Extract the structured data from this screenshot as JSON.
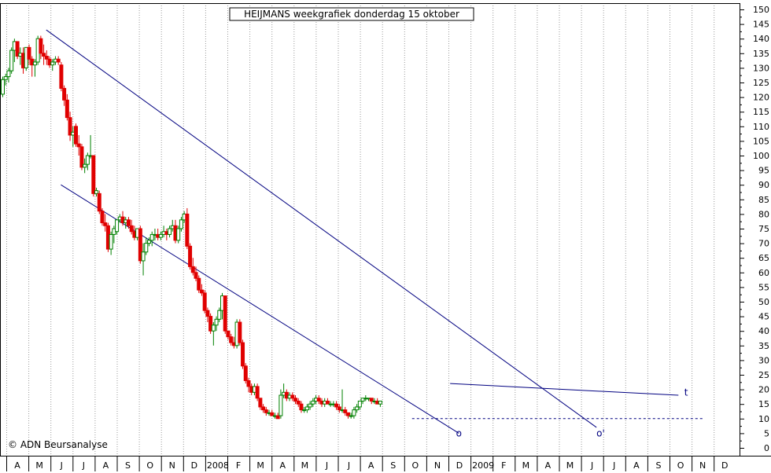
{
  "chart_data": {
    "type": "candlestick",
    "title": "HEIJMANS weekgrafiek donderdag 15 oktober",
    "copyright": "© ADN Beursanalyse",
    "y_axis": {
      "min": 0,
      "max": 150,
      "step": 5,
      "side": "right",
      "ticks": [
        "0",
        "5",
        "10",
        "15",
        "20",
        "25",
        "30",
        "35",
        "40",
        "45",
        "50",
        "55",
        "60",
        "65",
        "70",
        "75",
        "80",
        "85",
        "90",
        "95",
        "100",
        "105",
        "110",
        "115",
        "120",
        "125",
        "130",
        "135",
        "140",
        "145",
        "150"
      ]
    },
    "x_axis": {
      "labels": [
        "A",
        "M",
        "J",
        "J",
        "A",
        "S",
        "O",
        "N",
        "D",
        "2008",
        "F",
        "M",
        "A",
        "M",
        "J",
        "J",
        "A",
        "S",
        "O",
        "N",
        "D",
        "2009",
        "F",
        "M",
        "A",
        "M",
        "J",
        "J",
        "A",
        "S",
        "O",
        "N",
        "D"
      ],
      "major_labels": [
        "2008",
        "2009"
      ]
    },
    "grid": "vertical dotted",
    "colors": {
      "up": "#008000",
      "down": "#e00000",
      "trendline": "#000080",
      "support": "#000080"
    },
    "trendlines": [
      {
        "name": "upper channel",
        "from": {
          "week": 15,
          "value": 143
        },
        "to": {
          "week": 203,
          "value": 7
        }
      },
      {
        "name": "lower channel",
        "from": {
          "week": 20,
          "value": 90
        },
        "to": {
          "week": 156,
          "value": 5
        }
      },
      {
        "name": "resistance",
        "from": {
          "week": 153,
          "value": 22
        },
        "to": {
          "week": 231,
          "value": 18
        }
      },
      {
        "name": "support",
        "from": {
          "week": 140,
          "value": 10
        },
        "to": {
          "week": 240,
          "value": 10
        },
        "style": "dotted"
      }
    ],
    "annotations": [
      {
        "text": "o",
        "week": 155,
        "value": 5
      },
      {
        "text": "o'",
        "week": 203,
        "value": 5
      },
      {
        "text": "t",
        "week": 233,
        "value": 19
      }
    ],
    "candles": [
      {
        "o": 121,
        "h": 127,
        "l": 120,
        "c": 126
      },
      {
        "o": 126,
        "h": 128,
        "l": 124,
        "c": 127
      },
      {
        "o": 127,
        "h": 130,
        "l": 125,
        "c": 129
      },
      {
        "o": 129,
        "h": 137,
        "l": 128,
        "c": 136
      },
      {
        "o": 136,
        "h": 140,
        "l": 132,
        "c": 139
      },
      {
        "o": 139,
        "h": 139,
        "l": 133,
        "c": 134
      },
      {
        "o": 134,
        "h": 137,
        "l": 131,
        "c": 135
      },
      {
        "o": 135,
        "h": 137,
        "l": 128,
        "c": 130
      },
      {
        "o": 130,
        "h": 137,
        "l": 129,
        "c": 137
      },
      {
        "o": 137,
        "h": 138,
        "l": 131,
        "c": 133
      },
      {
        "o": 133,
        "h": 134,
        "l": 127,
        "c": 131
      },
      {
        "o": 131,
        "h": 133,
        "l": 127,
        "c": 132
      },
      {
        "o": 132,
        "h": 141,
        "l": 131,
        "c": 140
      },
      {
        "o": 140,
        "h": 141,
        "l": 133,
        "c": 135
      },
      {
        "o": 135,
        "h": 138,
        "l": 131,
        "c": 134
      },
      {
        "o": 134,
        "h": 136,
        "l": 131,
        "c": 133
      },
      {
        "o": 133,
        "h": 134,
        "l": 130,
        "c": 131
      },
      {
        "o": 131,
        "h": 133,
        "l": 129,
        "c": 132
      },
      {
        "o": 132,
        "h": 134,
        "l": 131,
        "c": 133
      },
      {
        "o": 133,
        "h": 134,
        "l": 131,
        "c": 132
      },
      {
        "o": 131,
        "h": 132,
        "l": 122,
        "c": 123
      },
      {
        "o": 123,
        "h": 124,
        "l": 117,
        "c": 119
      },
      {
        "o": 119,
        "h": 121,
        "l": 112,
        "c": 113
      },
      {
        "o": 113,
        "h": 115,
        "l": 105,
        "c": 107
      },
      {
        "o": 107,
        "h": 110,
        "l": 103,
        "c": 108
      },
      {
        "o": 110,
        "h": 111,
        "l": 103,
        "c": 104
      },
      {
        "o": 104,
        "h": 107,
        "l": 100,
        "c": 103
      },
      {
        "o": 103,
        "h": 104,
        "l": 95,
        "c": 96
      },
      {
        "o": 96,
        "h": 99,
        "l": 94,
        "c": 97
      },
      {
        "o": 97,
        "h": 101,
        "l": 95,
        "c": 100
      },
      {
        "o": 100,
        "h": 107,
        "l": 99,
        "c": 100
      },
      {
        "o": 100,
        "h": 100,
        "l": 86,
        "c": 87
      },
      {
        "o": 87,
        "h": 89,
        "l": 86,
        "c": 88
      },
      {
        "o": 87,
        "h": 88,
        "l": 80,
        "c": 81
      },
      {
        "o": 81,
        "h": 82,
        "l": 76,
        "c": 77
      },
      {
        "o": 77,
        "h": 80,
        "l": 74,
        "c": 76
      },
      {
        "o": 76,
        "h": 77,
        "l": 67,
        "c": 68
      },
      {
        "o": 68,
        "h": 74,
        "l": 66,
        "c": 73
      },
      {
        "o": 73,
        "h": 76,
        "l": 70,
        "c": 75
      },
      {
        "o": 74,
        "h": 78,
        "l": 73,
        "c": 78
      },
      {
        "o": 78,
        "h": 80,
        "l": 77,
        "c": 79
      },
      {
        "o": 79,
        "h": 81,
        "l": 76,
        "c": 77
      },
      {
        "o": 77,
        "h": 79,
        "l": 75,
        "c": 78
      },
      {
        "o": 78,
        "h": 79,
        "l": 75,
        "c": 76
      },
      {
        "o": 76,
        "h": 78,
        "l": 73,
        "c": 74
      },
      {
        "o": 74,
        "h": 76,
        "l": 71,
        "c": 72
      },
      {
        "o": 72,
        "h": 75,
        "l": 71,
        "c": 75
      },
      {
        "o": 75,
        "h": 76,
        "l": 63,
        "c": 64
      },
      {
        "o": 64,
        "h": 70,
        "l": 59,
        "c": 67
      },
      {
        "o": 67,
        "h": 72,
        "l": 66,
        "c": 70
      },
      {
        "o": 70,
        "h": 72,
        "l": 69,
        "c": 71
      },
      {
        "o": 71,
        "h": 74,
        "l": 69,
        "c": 73
      },
      {
        "o": 73,
        "h": 75,
        "l": 71,
        "c": 73
      },
      {
        "o": 73,
        "h": 75,
        "l": 71,
        "c": 72
      },
      {
        "o": 72,
        "h": 74,
        "l": 71,
        "c": 73
      },
      {
        "o": 73,
        "h": 76,
        "l": 72,
        "c": 74
      },
      {
        "o": 74,
        "h": 75,
        "l": 71,
        "c": 73
      },
      {
        "o": 73,
        "h": 76,
        "l": 72,
        "c": 75
      },
      {
        "o": 75,
        "h": 78,
        "l": 74,
        "c": 76
      },
      {
        "o": 76,
        "h": 78,
        "l": 70,
        "c": 71
      },
      {
        "o": 71,
        "h": 76,
        "l": 70,
        "c": 75
      },
      {
        "o": 75,
        "h": 79,
        "l": 74,
        "c": 78
      },
      {
        "o": 78,
        "h": 81,
        "l": 77,
        "c": 80
      },
      {
        "o": 80,
        "h": 82,
        "l": 68,
        "c": 69
      },
      {
        "o": 69,
        "h": 70,
        "l": 61,
        "c": 62
      },
      {
        "o": 62,
        "h": 65,
        "l": 59,
        "c": 60
      },
      {
        "o": 60,
        "h": 62,
        "l": 57,
        "c": 58
      },
      {
        "o": 58,
        "h": 59,
        "l": 53,
        "c": 54
      },
      {
        "o": 54,
        "h": 56,
        "l": 52,
        "c": 53
      },
      {
        "o": 53,
        "h": 54,
        "l": 46,
        "c": 47
      },
      {
        "o": 47,
        "h": 48,
        "l": 43,
        "c": 45
      },
      {
        "o": 45,
        "h": 46,
        "l": 39,
        "c": 40
      },
      {
        "o": 40,
        "h": 43,
        "l": 35,
        "c": 42
      },
      {
        "o": 42,
        "h": 45,
        "l": 40,
        "c": 44
      },
      {
        "o": 44,
        "h": 48,
        "l": 43,
        "c": 47
      },
      {
        "o": 47,
        "h": 53,
        "l": 44,
        "c": 52
      },
      {
        "o": 52,
        "h": 52,
        "l": 39,
        "c": 40
      },
      {
        "o": 40,
        "h": 40,
        "l": 37,
        "c": 38
      },
      {
        "o": 38,
        "h": 39,
        "l": 35,
        "c": 36
      },
      {
        "o": 36,
        "h": 38,
        "l": 34,
        "c": 35
      },
      {
        "o": 35,
        "h": 44,
        "l": 34,
        "c": 43
      },
      {
        "o": 43,
        "h": 44,
        "l": 35,
        "c": 36
      },
      {
        "o": 36,
        "h": 37,
        "l": 27,
        "c": 28
      },
      {
        "o": 28,
        "h": 29,
        "l": 22,
        "c": 23
      },
      {
        "o": 23,
        "h": 24,
        "l": 19,
        "c": 21
      },
      {
        "o": 21,
        "h": 22,
        "l": 18,
        "c": 19
      },
      {
        "o": 19,
        "h": 22,
        "l": 18,
        "c": 21
      },
      {
        "o": 21,
        "h": 22,
        "l": 16,
        "c": 17
      },
      {
        "o": 17,
        "h": 17,
        "l": 13,
        "c": 14
      },
      {
        "o": 14,
        "h": 15,
        "l": 12,
        "c": 13
      },
      {
        "o": 13,
        "h": 14,
        "l": 11,
        "c": 12
      },
      {
        "o": 12,
        "h": 13,
        "l": 11,
        "c": 12
      },
      {
        "o": 12,
        "h": 13,
        "l": 11,
        "c": 11
      },
      {
        "o": 11,
        "h": 12,
        "l": 10,
        "c": 11
      },
      {
        "o": 11,
        "h": 12,
        "l": 10,
        "c": 10
      },
      {
        "o": 11,
        "h": 20,
        "l": 10,
        "c": 18
      },
      {
        "o": 18,
        "h": 22,
        "l": 17,
        "c": 19
      },
      {
        "o": 19,
        "h": 20,
        "l": 16,
        "c": 17
      },
      {
        "o": 17,
        "h": 19,
        "l": 16,
        "c": 18
      },
      {
        "o": 18,
        "h": 19,
        "l": 16,
        "c": 17
      },
      {
        "o": 17,
        "h": 18,
        "l": 15,
        "c": 16
      },
      {
        "o": 16,
        "h": 17,
        "l": 14,
        "c": 15
      },
      {
        "o": 15,
        "h": 16,
        "l": 12,
        "c": 13
      },
      {
        "o": 13,
        "h": 14,
        "l": 12,
        "c": 13
      },
      {
        "o": 13,
        "h": 15,
        "l": 12,
        "c": 14
      },
      {
        "o": 14,
        "h": 16,
        "l": 13,
        "c": 15
      },
      {
        "o": 15,
        "h": 17,
        "l": 14,
        "c": 16
      },
      {
        "o": 16,
        "h": 18,
        "l": 15,
        "c": 17
      },
      {
        "o": 17,
        "h": 18,
        "l": 15,
        "c": 16
      },
      {
        "o": 16,
        "h": 17,
        "l": 14,
        "c": 15
      },
      {
        "o": 15,
        "h": 17,
        "l": 14,
        "c": 16
      },
      {
        "o": 16,
        "h": 17,
        "l": 15,
        "c": 15
      },
      {
        "o": 15,
        "h": 16,
        "l": 14,
        "c": 15
      },
      {
        "o": 15,
        "h": 16,
        "l": 14,
        "c": 15
      },
      {
        "o": 15,
        "h": 16,
        "l": 13,
        "c": 14
      },
      {
        "o": 14,
        "h": 15,
        "l": 12,
        "c": 13
      },
      {
        "o": 13,
        "h": 20,
        "l": 12,
        "c": 13
      },
      {
        "o": 13,
        "h": 14,
        "l": 11,
        "c": 12
      },
      {
        "o": 12,
        "h": 12,
        "l": 10,
        "c": 11
      },
      {
        "o": 11,
        "h": 12,
        "l": 10,
        "c": 11
      },
      {
        "o": 11,
        "h": 14,
        "l": 10,
        "c": 13
      },
      {
        "o": 13,
        "h": 15,
        "l": 12,
        "c": 14
      },
      {
        "o": 14,
        "h": 16,
        "l": 13,
        "c": 16
      },
      {
        "o": 16,
        "h": 17,
        "l": 15,
        "c": 17
      },
      {
        "o": 17,
        "h": 18,
        "l": 16,
        "c": 17
      },
      {
        "o": 17,
        "h": 17,
        "l": 16,
        "c": 17
      },
      {
        "o": 17,
        "h": 17,
        "l": 15,
        "c": 16
      },
      {
        "o": 16,
        "h": 17,
        "l": 15,
        "c": 16
      },
      {
        "o": 16,
        "h": 17,
        "l": 15,
        "c": 15
      },
      {
        "o": 15,
        "h": 16,
        "l": 14,
        "c": 16
      }
    ]
  }
}
